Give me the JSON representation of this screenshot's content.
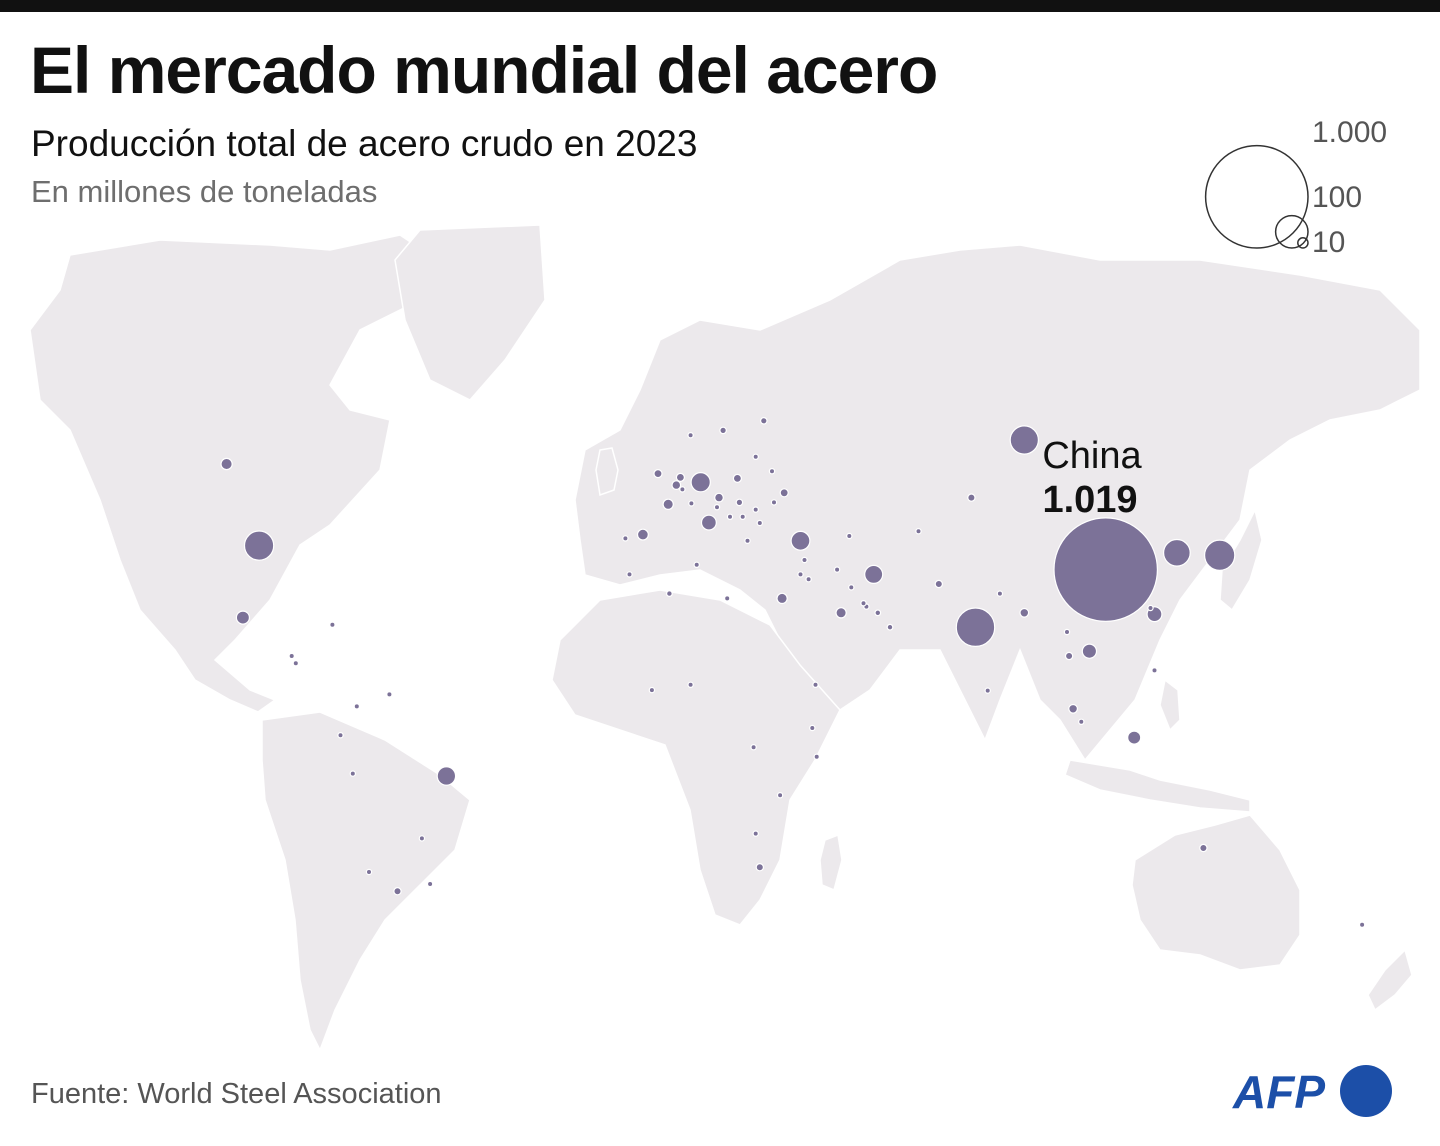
{
  "header": {
    "title": "El mercado mundial del acero",
    "subtitle": "Producción total de acero crudo en 2023",
    "unit": "En millones de toneladas"
  },
  "legend": {
    "labels": [
      "1.000",
      "100",
      "10"
    ],
    "values": [
      1000,
      100,
      10
    ]
  },
  "callout": {
    "country": "China",
    "value": "1.019"
  },
  "footer": {
    "source": "Fuente: World Steel Association",
    "logo": "AFP"
  },
  "colors": {
    "bubble": "#7c7298",
    "land": "#ece9ec",
    "logo": "#1c4fa8",
    "topbar": "#111111"
  },
  "chart_data": {
    "type": "bubble-map",
    "region": "world",
    "unit": "millones de toneladas",
    "points": [
      {
        "lon": 110,
        "lat": 33,
        "value": 1019,
        "label": "China"
      },
      {
        "lon": 78,
        "lat": 21,
        "value": 140
      },
      {
        "lon": 138,
        "lat": 36,
        "value": 87
      },
      {
        "lon": -98,
        "lat": 38,
        "value": 81
      },
      {
        "lon": 90,
        "lat": 60,
        "value": 76
      },
      {
        "lon": 127.5,
        "lat": 36.5,
        "value": 67
      },
      {
        "lon": 10.5,
        "lat": 51.2,
        "value": 35
      },
      {
        "lon": 35,
        "lat": 39,
        "value": 34
      },
      {
        "lon": -52,
        "lat": -10,
        "value": 32
      },
      {
        "lon": 53,
        "lat": 32,
        "value": 31
      },
      {
        "lon": 106,
        "lat": 16,
        "value": 19
      },
      {
        "lon": 12.5,
        "lat": 42.8,
        "value": 21
      },
      {
        "lon": 77,
        "lat": 48,
        "value": 5
      },
      {
        "lon": -102,
        "lat": 23,
        "value": 16
      },
      {
        "lon": 122,
        "lat": 23.7,
        "value": 21
      },
      {
        "lon": -3.7,
        "lat": 40.3,
        "value": 11
      },
      {
        "lon": 2.5,
        "lat": 46.6,
        "value": 10
      },
      {
        "lon": 45,
        "lat": 24,
        "value": 10
      },
      {
        "lon": 117,
        "lat": -2,
        "value": 16
      },
      {
        "lon": 31,
        "lat": 49,
        "value": 6
      },
      {
        "lon": 69,
        "lat": 30,
        "value": 5
      },
      {
        "lon": 30.5,
        "lat": 27,
        "value": 10
      },
      {
        "lon": -106,
        "lat": 55,
        "value": 12
      },
      {
        "lon": 19.5,
        "lat": 52,
        "value": 6
      },
      {
        "lon": 20,
        "lat": 47,
        "value": 4
      },
      {
        "lon": 15,
        "lat": 48,
        "value": 7
      },
      {
        "lon": 24,
        "lat": 45.5,
        "value": 2
      },
      {
        "lon": 16,
        "lat": 62,
        "value": 4
      },
      {
        "lon": 26,
        "lat": 64,
        "value": 4
      },
      {
        "lon": 8,
        "lat": 61,
        "value": 1
      },
      {
        "lon": 0,
        "lat": 53,
        "value": 6
      },
      {
        "lon": 4.5,
        "lat": 50.6,
        "value": 7
      },
      {
        "lon": 5.5,
        "lat": 52.2,
        "value": 6
      },
      {
        "lon": 6,
        "lat": 49.7,
        "value": 2
      },
      {
        "lon": 8.2,
        "lat": 46.8,
        "value": 1
      },
      {
        "lon": 14.5,
        "lat": 46,
        "value": 1
      },
      {
        "lon": 17.7,
        "lat": 44,
        "value": 1
      },
      {
        "lon": 20.8,
        "lat": 44,
        "value": 1
      },
      {
        "lon": 25,
        "lat": 42.7,
        "value": 1
      },
      {
        "lon": 22,
        "lat": 39,
        "value": 1
      },
      {
        "lon": 28,
        "lat": 53.5,
        "value": 2
      },
      {
        "lon": 24,
        "lat": 56.5,
        "value": 1
      },
      {
        "lon": 28.5,
        "lat": 47,
        "value": 1
      },
      {
        "lon": -8,
        "lat": 39.5,
        "value": 2
      },
      {
        "lon": 2.8,
        "lat": 28,
        "value": 3
      },
      {
        "lon": -7,
        "lat": 32,
        "value": 1
      },
      {
        "lon": 9.5,
        "lat": 34,
        "value": 1
      },
      {
        "lon": 17,
        "lat": 27,
        "value": 1
      },
      {
        "lon": 36,
        "lat": 35,
        "value": 1
      },
      {
        "lon": 37,
        "lat": 31,
        "value": 1
      },
      {
        "lon": 35,
        "lat": 32,
        "value": 1
      },
      {
        "lon": 44,
        "lat": 33,
        "value": 1
      },
      {
        "lon": 47.5,
        "lat": 29.3,
        "value": 1
      },
      {
        "lon": 51.2,
        "lat": 25.3,
        "value": 2
      },
      {
        "lon": 54,
        "lat": 24,
        "value": 3
      },
      {
        "lon": 57,
        "lat": 21,
        "value": 3
      },
      {
        "lon": 50.5,
        "lat": 26,
        "value": 1
      },
      {
        "lon": 47,
        "lat": 40,
        "value": 1
      },
      {
        "lon": 64,
        "lat": 41,
        "value": 1
      },
      {
        "lon": 84,
        "lat": 28,
        "value": 1
      },
      {
        "lon": 90,
        "lat": 24,
        "value": 7
      },
      {
        "lon": 81,
        "lat": 7.8,
        "value": 1
      },
      {
        "lon": 101,
        "lat": 15,
        "value": 5
      },
      {
        "lon": 122,
        "lat": 12,
        "value": 1
      },
      {
        "lon": 102,
        "lat": 4,
        "value": 7
      },
      {
        "lon": 104,
        "lat": 1.3,
        "value": 1
      },
      {
        "lon": 100.5,
        "lat": 20,
        "value": 1
      },
      {
        "lon": 121,
        "lat": 25,
        "value": 1
      },
      {
        "lon": 134,
        "lat": -25,
        "value": 5
      },
      {
        "lon": 173,
        "lat": -41,
        "value": 1
      },
      {
        "lon": 25,
        "lat": -29,
        "value": 5
      },
      {
        "lon": 24,
        "lat": -22,
        "value": 1
      },
      {
        "lon": 8,
        "lat": 9,
        "value": 1
      },
      {
        "lon": -1.5,
        "lat": 7.9,
        "value": 1
      },
      {
        "lon": 38.7,
        "lat": 9,
        "value": 1
      },
      {
        "lon": 37.9,
        "lat": 0,
        "value": 1
      },
      {
        "lon": 39,
        "lat": -6,
        "value": 1
      },
      {
        "lon": 30,
        "lat": -14,
        "value": 1
      },
      {
        "lon": 23.5,
        "lat": -4,
        "value": 1
      },
      {
        "lon": -74,
        "lat": 4.5,
        "value": 2
      },
      {
        "lon": -66,
        "lat": 7,
        "value": 1
      },
      {
        "lon": -78,
        "lat": -1.5,
        "value": 1
      },
      {
        "lon": -75,
        "lat": -9.5,
        "value": 1
      },
      {
        "lon": -64,
        "lat": -34,
        "value": 5
      },
      {
        "lon": -71,
        "lat": -30,
        "value": 1
      },
      {
        "lon": -56,
        "lat": -32.5,
        "value": 1
      },
      {
        "lon": -58,
        "lat": -23,
        "value": 1
      },
      {
        "lon": -90,
        "lat": 15,
        "value": 1
      },
      {
        "lon": -89,
        "lat": 13.5,
        "value": 1
      },
      {
        "lon": -80,
        "lat": 21.5,
        "value": 1
      }
    ]
  }
}
